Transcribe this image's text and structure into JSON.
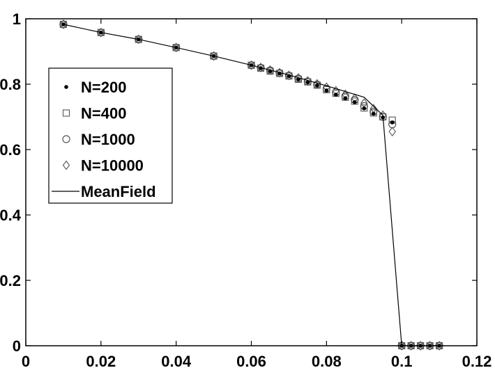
{
  "chart_data": {
    "type": "scatter",
    "xlim": [
      0,
      0.12
    ],
    "ylim": [
      0,
      1
    ],
    "x_ticks": [
      0,
      0.02,
      0.04,
      0.06,
      0.08,
      0.1,
      0.12
    ],
    "x_tick_labels": [
      "0",
      "0.02",
      "0.04",
      "0.06",
      "0.08",
      "0.1",
      "0.12"
    ],
    "y_ticks": [
      0,
      0.2,
      0.4,
      0.6,
      0.8,
      1
    ],
    "y_tick_labels": [
      "0",
      "0.2",
      "0.4",
      "0.6",
      "0.8",
      "1"
    ],
    "grid": false,
    "legend_position": "upper-left",
    "series": [
      {
        "name": "N=200",
        "marker": "dot",
        "x": [
          0.01,
          0.02,
          0.03,
          0.04,
          0.05,
          0.06,
          0.0625,
          0.065,
          0.0675,
          0.07,
          0.0725,
          0.075,
          0.0775,
          0.08,
          0.0825,
          0.085,
          0.0875,
          0.09,
          0.0925,
          0.095,
          0.0975,
          0.1,
          0.1025,
          0.105,
          0.1075,
          0.11
        ],
        "y": [
          0.983,
          0.958,
          0.937,
          0.912,
          0.886,
          0.858,
          0.849,
          0.84,
          0.833,
          0.825,
          0.815,
          0.806,
          0.796,
          0.781,
          0.768,
          0.757,
          0.745,
          0.726,
          0.71,
          0.698,
          0.683,
          0.0,
          0.0,
          0.0,
          0.0,
          0.0
        ]
      },
      {
        "name": "N=400",
        "marker": "square",
        "x": [
          0.01,
          0.02,
          0.03,
          0.04,
          0.05,
          0.06,
          0.0625,
          0.065,
          0.0675,
          0.07,
          0.0725,
          0.075,
          0.0775,
          0.08,
          0.0825,
          0.085,
          0.0875,
          0.09,
          0.0925,
          0.095,
          0.0975,
          0.1,
          0.1025,
          0.105,
          0.1075,
          0.11
        ],
        "y": [
          0.983,
          0.958,
          0.937,
          0.912,
          0.886,
          0.858,
          0.849,
          0.84,
          0.833,
          0.825,
          0.815,
          0.807,
          0.797,
          0.783,
          0.772,
          0.76,
          0.748,
          0.727,
          0.712,
          0.7,
          0.69,
          0.0,
          0.0,
          0.0,
          0.0,
          0.0
        ]
      },
      {
        "name": "N=1000",
        "marker": "circle",
        "x": [
          0.01,
          0.02,
          0.03,
          0.04,
          0.05,
          0.06,
          0.0625,
          0.065,
          0.0675,
          0.07,
          0.0725,
          0.075,
          0.0775,
          0.08,
          0.0825,
          0.085,
          0.0875,
          0.09,
          0.0925,
          0.095,
          0.0975,
          0.1,
          0.1025,
          0.105,
          0.1075,
          0.11
        ],
        "y": [
          0.983,
          0.958,
          0.937,
          0.912,
          0.886,
          0.858,
          0.85,
          0.842,
          0.834,
          0.826,
          0.817,
          0.808,
          0.799,
          0.786,
          0.775,
          0.763,
          0.752,
          0.733,
          0.716,
          0.7,
          0.677,
          0.0,
          0.0,
          0.0,
          0.0,
          0.0
        ]
      },
      {
        "name": "N=10000",
        "marker": "diamond",
        "x": [
          0.01,
          0.02,
          0.03,
          0.04,
          0.05,
          0.06,
          0.0625,
          0.065,
          0.0675,
          0.07,
          0.0725,
          0.075,
          0.0775,
          0.08,
          0.0825,
          0.085,
          0.0875,
          0.09,
          0.0925,
          0.095,
          0.0975,
          0.1,
          0.1025,
          0.105,
          0.1075,
          0.11
        ],
        "y": [
          0.983,
          0.958,
          0.937,
          0.912,
          0.886,
          0.858,
          0.851,
          0.843,
          0.835,
          0.827,
          0.819,
          0.81,
          0.801,
          0.791,
          0.78,
          0.769,
          0.757,
          0.742,
          0.725,
          0.705,
          0.655,
          0.0,
          0.0,
          0.0,
          0.0,
          0.0
        ]
      },
      {
        "name": "MeanField",
        "marker": "line",
        "x": [
          0.01,
          0.02,
          0.03,
          0.04,
          0.05,
          0.06,
          0.07,
          0.08,
          0.09,
          0.095,
          0.1,
          0.11
        ],
        "y": [
          0.983,
          0.958,
          0.937,
          0.912,
          0.886,
          0.858,
          0.828,
          0.795,
          0.76,
          0.705,
          0.0,
          0.0
        ]
      }
    ],
    "title": "",
    "xlabel": "",
    "ylabel": ""
  }
}
